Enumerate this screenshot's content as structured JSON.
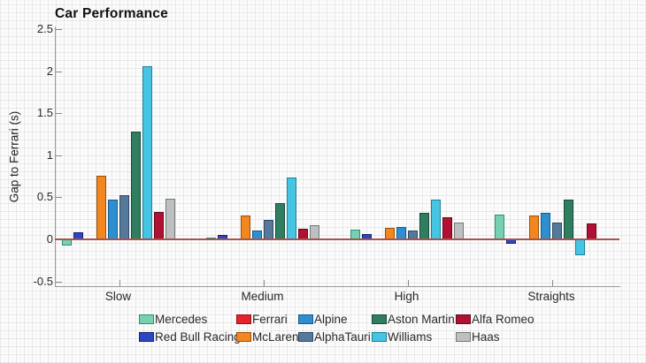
{
  "title": "Car Performance",
  "axes": {
    "ylabel": "Gap to Ferrari (s)",
    "ytick_labels": [
      "2.5",
      "2",
      "1.5",
      "1",
      "0.5",
      "0",
      "-0.5"
    ],
    "xtick_labels": [
      "Slow",
      "Medium",
      "High",
      "Straights"
    ]
  },
  "colors": {
    "zero_line": "#a8544d",
    "axis": "#9a9a9a"
  },
  "legend_rows": [
    [
      "Mercedes",
      "Ferrari",
      "Alpine",
      "Aston Martin",
      "Alfa Romeo"
    ],
    [
      "Red Bull Racing",
      "McLaren",
      "AlphaTauri",
      "Williams",
      "Haas"
    ]
  ],
  "chart_data": {
    "type": "bar",
    "title": "Car Performance",
    "xlabel": "",
    "ylabel": "Gap to Ferrari (s)",
    "ylim": [
      -0.5,
      2.5
    ],
    "ytick_step": 0.5,
    "grid": "fine graph-paper texture, no heavy gridlines",
    "legend_position": "bottom",
    "categories": [
      "Slow",
      "Medium",
      "High",
      "Straights"
    ],
    "series": [
      {
        "name": "Mercedes",
        "color": "#76d0b2",
        "border": "#2f8e78",
        "values": [
          -0.07,
          0.02,
          0.12,
          0.29
        ]
      },
      {
        "name": "Red Bull Racing",
        "color": "#2a46c2",
        "border": "#16246f",
        "values": [
          0.08,
          0.05,
          0.06,
          -0.05
        ]
      },
      {
        "name": "Ferrari",
        "color": "#e8222d",
        "border": "#8f1218",
        "values": [
          0,
          0,
          0,
          0
        ]
      },
      {
        "name": "McLaren",
        "color": "#f2861f",
        "border": "#96510e",
        "values": [
          0.76,
          0.28,
          0.14,
          0.28
        ]
      },
      {
        "name": "Alpine",
        "color": "#2e8fd0",
        "border": "#195a87",
        "values": [
          0.47,
          0.11,
          0.15,
          0.32
        ]
      },
      {
        "name": "AlphaTauri",
        "color": "#55799b",
        "border": "#2f4a63",
        "values": [
          0.52,
          0.23,
          0.1,
          0.2
        ]
      },
      {
        "name": "Aston Martin",
        "color": "#2f7e60",
        "border": "#174a36",
        "values": [
          1.28,
          0.43,
          0.31,
          0.47
        ]
      },
      {
        "name": "Williams",
        "color": "#45c5e2",
        "border": "#1d7f99",
        "values": [
          2.06,
          0.74,
          0.47,
          -0.19
        ]
      },
      {
        "name": "Alfa Romeo",
        "color": "#b01031",
        "border": "#660a1d",
        "values": [
          0.33,
          0.13,
          0.26,
          0.19
        ]
      },
      {
        "name": "Haas",
        "color": "#bcc0c0",
        "border": "#737779",
        "values": [
          0.48,
          0.17,
          0.2,
          0.01
        ]
      }
    ]
  }
}
